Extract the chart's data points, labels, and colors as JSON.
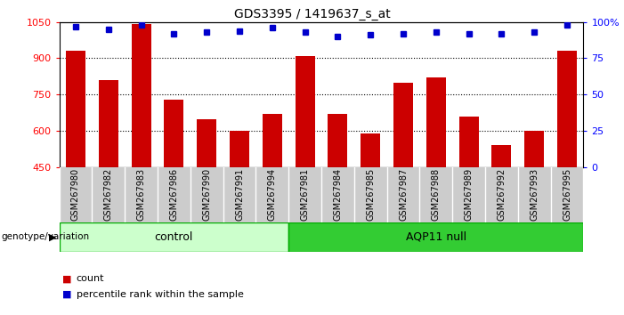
{
  "title": "GDS3395 / 1419637_s_at",
  "categories": [
    "GSM267980",
    "GSM267982",
    "GSM267983",
    "GSM267986",
    "GSM267990",
    "GSM267991",
    "GSM267994",
    "GSM267981",
    "GSM267984",
    "GSM267985",
    "GSM267987",
    "GSM267988",
    "GSM267989",
    "GSM267992",
    "GSM267993",
    "GSM267995"
  ],
  "bar_values": [
    930,
    810,
    1042,
    730,
    648,
    600,
    668,
    910,
    668,
    590,
    800,
    820,
    658,
    540,
    600,
    930
  ],
  "percentile_values": [
    97,
    95,
    98,
    92,
    93,
    94,
    96,
    93,
    90,
    91,
    92,
    93,
    92,
    92,
    93,
    98
  ],
  "ylim_left": [
    450,
    1050
  ],
  "ylim_right": [
    0,
    100
  ],
  "yticks_left": [
    450,
    600,
    750,
    900,
    1050
  ],
  "yticks_right": [
    0,
    25,
    50,
    75,
    100
  ],
  "bar_color": "#cc0000",
  "dot_color": "#0000cc",
  "control_count": 7,
  "aqp11_count": 9,
  "control_label": "control",
  "aqp11_label": "AQP11 null",
  "genotype_label": "genotype/variation",
  "legend_count_label": "count",
  "legend_percentile_label": "percentile rank within the sample",
  "control_bg": "#ccffcc",
  "aqp11_bg": "#33cc33",
  "cell_bg": "#cccccc",
  "cell_border": "#ffffff",
  "figure_bg": "#ffffff",
  "plot_bg": "#ffffff",
  "grid_yticks": [
    600,
    750,
    900
  ],
  "right_yticklabels": [
    "0",
    "25",
    "50",
    "75",
    "100%"
  ]
}
